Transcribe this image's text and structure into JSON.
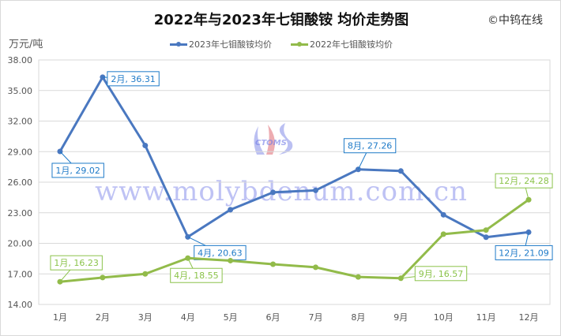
{
  "title": "2022年与2023年七钼酸铵 均价走势图",
  "copyright": "©中钨在线",
  "watermark": "www.molybdenum.com.cn",
  "logo_text": "CTOMS",
  "chart_data": {
    "type": "line",
    "title": "2022年与2023年七钼酸铵 均价走势图",
    "ylabel": "万元/吨",
    "categories": [
      "1月",
      "2月",
      "3月",
      "4月",
      "5月",
      "6月",
      "7月",
      "8月",
      "9月",
      "10月",
      "11月",
      "12月"
    ],
    "yticks": [
      "14.00",
      "17.00",
      "20.00",
      "23.00",
      "26.00",
      "29.00",
      "32.00",
      "35.00",
      "38.00"
    ],
    "ylim": [
      14,
      38
    ],
    "grid": true,
    "legend_position": "top",
    "series": [
      {
        "name": "2023年七钼酸铵均价",
        "color": "#4a78c0",
        "label_color": "#1e7ac8",
        "values": [
          29.02,
          36.31,
          29.6,
          20.63,
          23.3,
          25.0,
          25.2,
          27.26,
          27.1,
          22.8,
          20.6,
          21.09
        ],
        "labels": [
          {
            "i": 0,
            "text": "1月, 29.02"
          },
          {
            "i": 1,
            "text": "2月, 36.31"
          },
          {
            "i": 3,
            "text": "4月, 20.63"
          },
          {
            "i": 7,
            "text": "8月, 27.26"
          },
          {
            "i": 11,
            "text": "12月, 21.09"
          }
        ]
      },
      {
        "name": "2022年七钼酸铵均价",
        "color": "#92bb4a",
        "label_color": "#8bc34a",
        "values": [
          16.23,
          16.64,
          17.0,
          18.55,
          18.3,
          17.95,
          17.65,
          16.7,
          16.57,
          20.9,
          21.3,
          24.28
        ],
        "labels": [
          {
            "i": 0,
            "text": "1月, 16.23"
          },
          {
            "i": 3,
            "text": "4月, 18.55"
          },
          {
            "i": 8,
            "text": "9月, 16.57"
          },
          {
            "i": 11,
            "text": "12月, 24.28"
          }
        ]
      }
    ]
  }
}
